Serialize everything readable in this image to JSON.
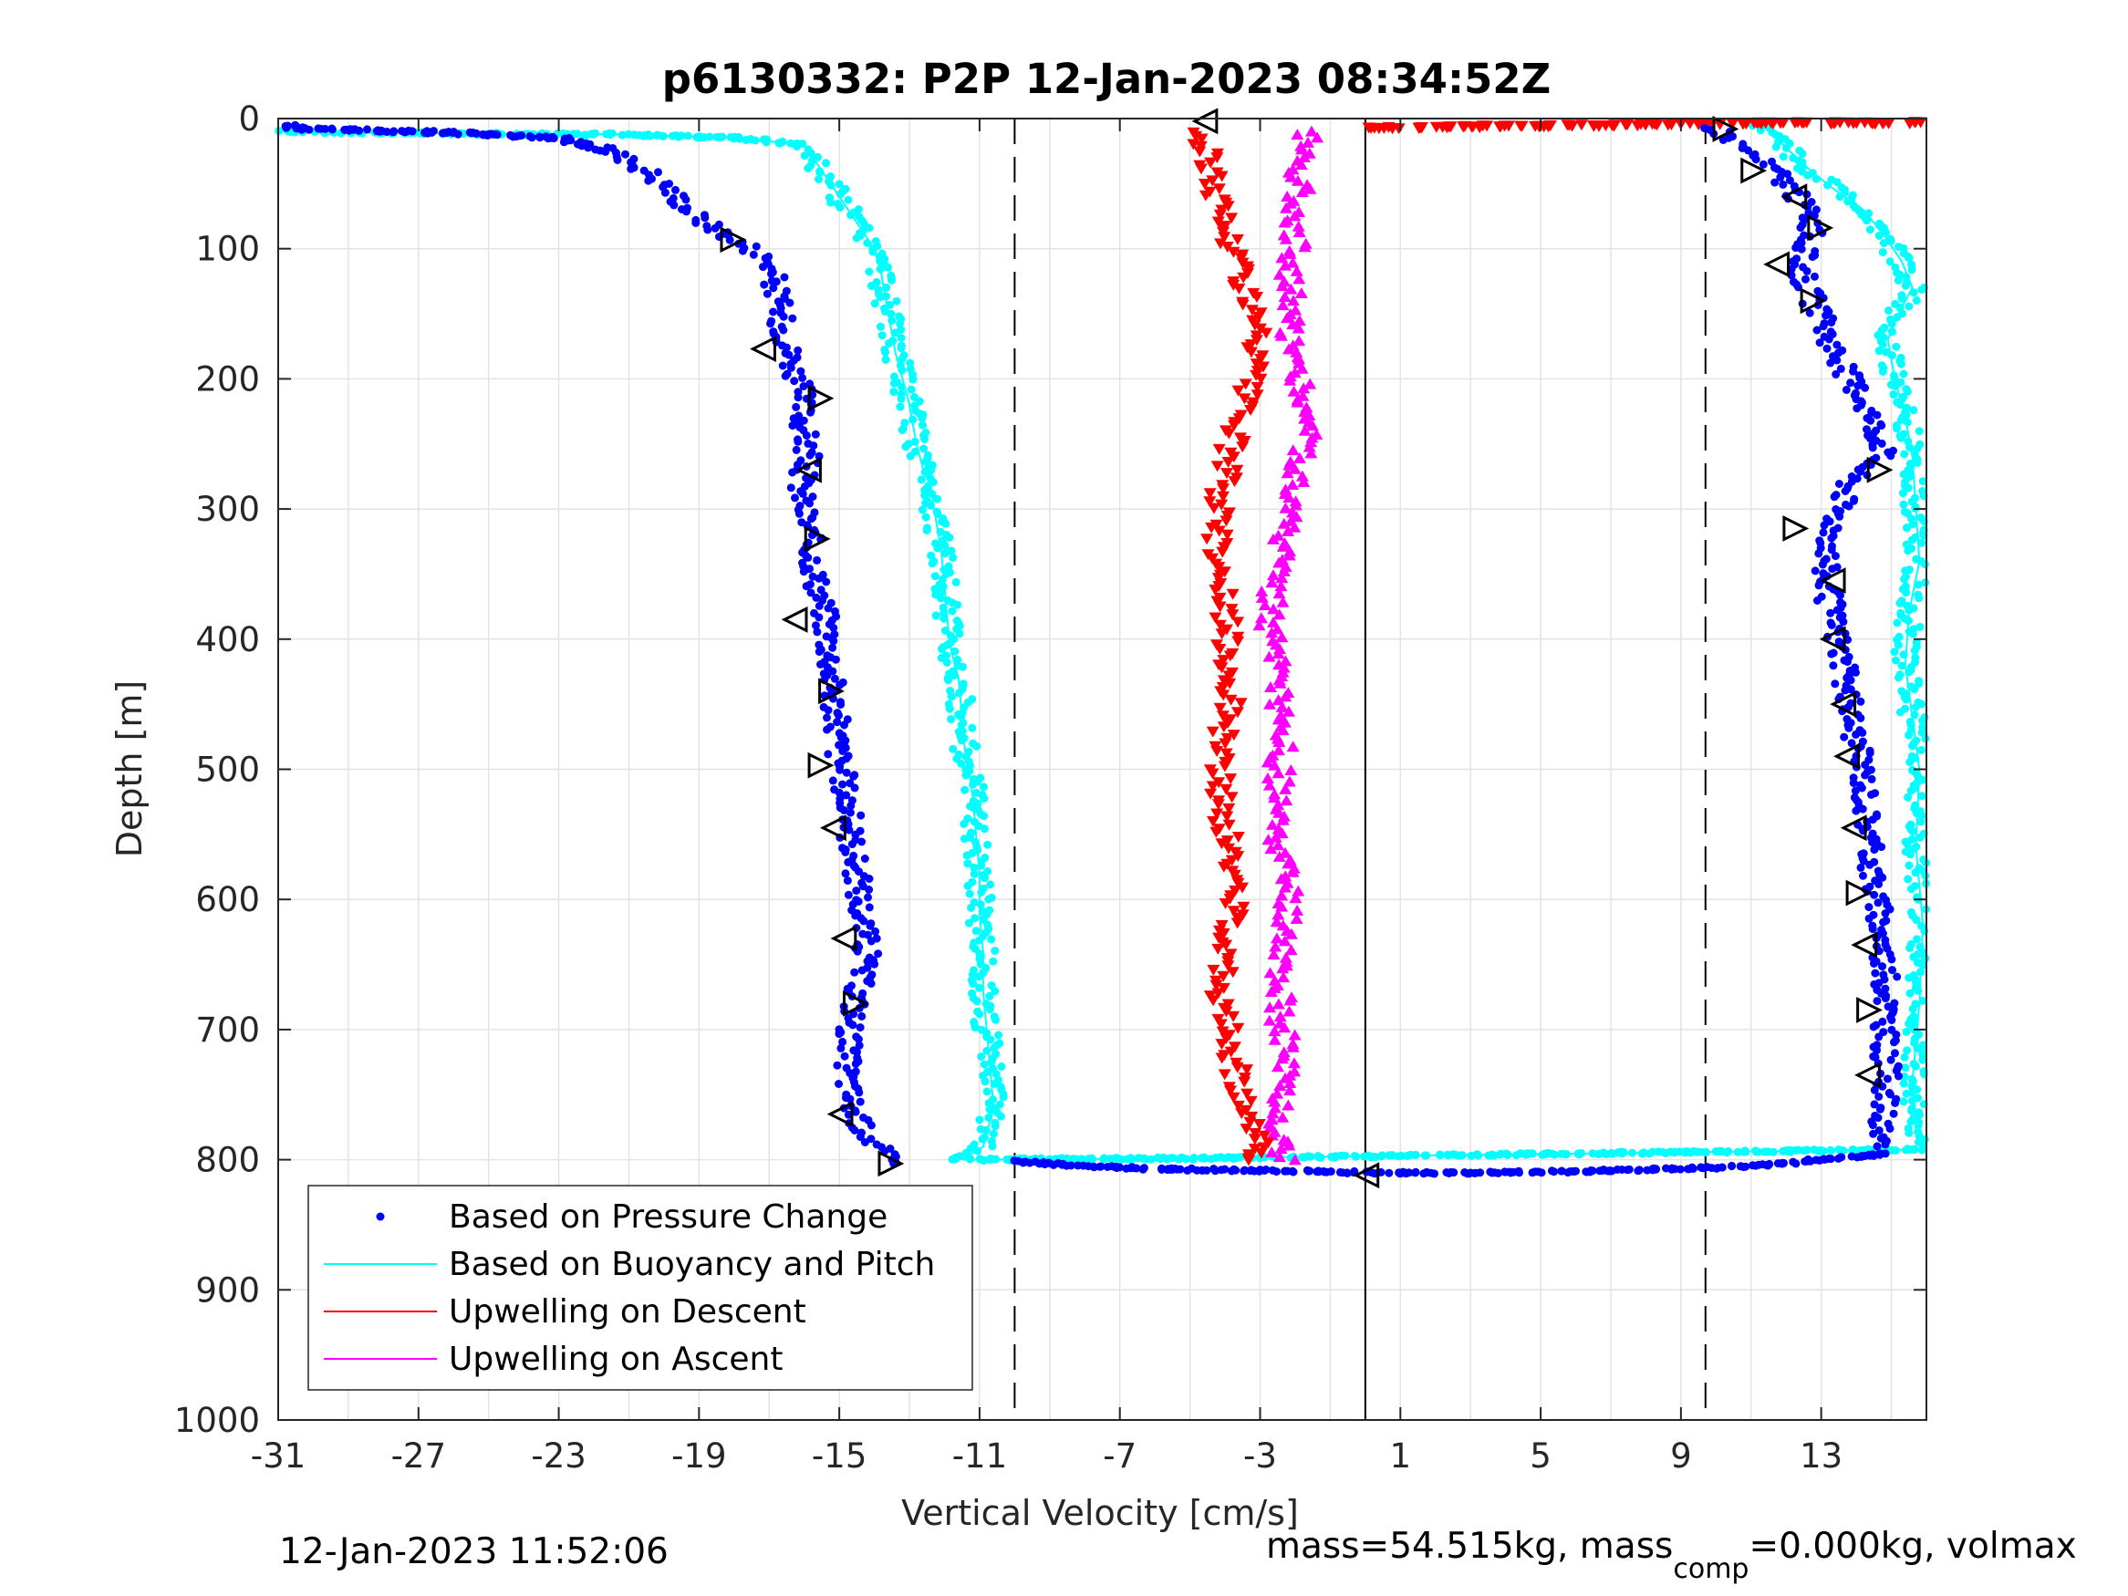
{
  "chart_data": {
    "type": "scatter",
    "title": "p6130332: P2P 12-Jan-2023 08:34:52Z",
    "xlabel": "Vertical Velocity [cm/s]",
    "ylabel": "Depth [m]",
    "xlim": [
      -31,
      16
    ],
    "ylim": [
      0,
      1000
    ],
    "y_reversed": true,
    "grid": true,
    "legend_location": "bottom-left",
    "x_ticks": [
      -31,
      -27,
      -23,
      -19,
      -15,
      -11,
      -7,
      -3,
      1,
      5,
      9,
      13
    ],
    "y_ticks": [
      0,
      100,
      200,
      300,
      400,
      500,
      600,
      700,
      800,
      900,
      1000
    ],
    "reference_lines": [
      {
        "x": -10,
        "style": "dashed"
      },
      {
        "x": 9.7,
        "style": "dashed"
      },
      {
        "x": 0,
        "style": "solid"
      }
    ],
    "series": [
      {
        "name": "Based on Pressure Change",
        "color": "#0000ff",
        "marker": "dot",
        "profiles": [
          {
            "x": [
              -31,
              -30,
              -27,
              -25,
              -23,
              -21.5,
              -20.5,
              -19.8,
              -19.3,
              -18.8,
              -18.2,
              -17.5,
              -17,
              -16.8,
              -16.7,
              -16.5,
              -16.3,
              -16.1,
              -16,
              -15.9,
              -16.1,
              -16,
              -15.8,
              -15.6,
              -15.4,
              -15.3,
              -15.2,
              -15.1,
              -15,
              -14.8,
              -14.6,
              -14.4,
              -14.2,
              -14.4,
              -14.6,
              -14.8,
              -14.7,
              -14.5,
              -14.2,
              -13.9,
              -13.6,
              -13.4
            ],
            "y": [
              5,
              8,
              10,
              12,
              15,
              25,
              40,
              55,
              70,
              80,
              90,
              100,
              110,
              130,
              150,
              170,
              190,
              210,
              240,
              260,
              280,
              300,
              330,
              360,
              380,
              400,
              430,
              460,
              490,
              520,
              560,
              600,
              640,
              660,
              690,
              720,
              750,
              770,
              780,
              790,
              800,
              803
            ]
          },
          {
            "x": [
              10,
              10.4,
              10.9,
              11.4,
              11.9,
              12.3,
              12.6,
              12.8,
              12.6,
              12.4,
              12.6,
              13.1,
              13.6,
              14.2,
              14.6,
              14.8,
              14.5,
              13.9,
              13.4,
              13.1,
              13.3,
              13.5,
              13.6,
              13.8,
              14,
              14.2,
              14.3,
              14.4,
              14.5,
              14.7,
              14.8,
              14.9,
              14.8,
              14.9,
              14.8,
              14.6,
              14.5
            ],
            "y": [
              8,
              15,
              25,
              35,
              45,
              60,
              70,
              80,
              95,
              110,
              130,
              160,
              190,
              215,
              240,
              255,
              265,
              275,
              310,
              350,
              380,
              400,
              420,
              450,
              480,
              500,
              530,
              560,
              590,
              620,
              650,
              680,
              710,
              740,
              760,
              780,
              790
            ]
          },
          {
            "x": [
              -10,
              -8,
              -6,
              -4,
              -1,
              0,
              3,
              6,
              9,
              11,
              13,
              15
            ],
            "y": [
              801,
              805,
              807,
              808,
              809,
              810,
              810,
              809,
              807,
              805,
              800,
              795
            ]
          }
        ]
      },
      {
        "name": "Based on Buoyancy and Pitch",
        "color": "#00ffff",
        "marker": "dot-line",
        "profiles": [
          {
            "x": [
              -31,
              -24,
              -21.5,
              -18,
              -16,
              -15.5,
              -15,
              -14.5,
              -14,
              -13.8,
              -13.6,
              -13.4,
              -13.2,
              -13,
              -12.8,
              -12.6,
              -12.4,
              -12.3,
              -12.1,
              -12,
              -11.9,
              -11.8,
              -11.6,
              -11.5,
              -11.4,
              -11.3,
              -11.2,
              -11.1,
              -11,
              -11,
              -10.9,
              -10.9,
              -10.8,
              -10.7,
              -10.6,
              -10.9,
              -11.5
            ],
            "y": [
              10,
              12,
              12,
              15,
              20,
              40,
              60,
              80,
              100,
              120,
              150,
              180,
              200,
              220,
              250,
              270,
              280,
              300,
              330,
              360,
              390,
              410,
              430,
              460,
              490,
              500,
              520,
              550,
              580,
              610,
              640,
              670,
              700,
              730,
              760,
              790,
              800
            ]
          },
          {
            "x": [
              -11.5,
              -5,
              1,
              7,
              13,
              16
            ],
            "y": [
              800,
              799,
              797,
              795,
              793,
              792
            ]
          },
          {
            "x": [
              11.2,
              11.6,
              12.1,
              12.7,
              13.4,
              14.2,
              14.8,
              15.3,
              15.6,
              15.2,
              14.9,
              15.1,
              15.4,
              15.6,
              15.7,
              15.8,
              15.5,
              15.4,
              15.6,
              15.8,
              15.7,
              15.9,
              15.8,
              15.6,
              15.8
            ],
            "y": [
              3,
              12,
              25,
              40,
              55,
              70,
              90,
              110,
              130,
              150,
              170,
              200,
              230,
              260,
              300,
              340,
              380,
              420,
              460,
              500,
              560,
              620,
              680,
              740,
              790
            ]
          }
        ]
      },
      {
        "name": "Upwelling on Descent",
        "color": "#ff0000",
        "marker": "triangle-down",
        "profiles": [
          {
            "x": [
              -4.8,
              -4.5,
              -4.3,
              -4.1,
              -3.9,
              -3.6,
              -3.3,
              -3.1,
              -3.3,
              -3.6,
              -3.9,
              -4.1,
              -4.2,
              -4.1,
              -4,
              -3.9,
              -3.8,
              -4,
              -4.2,
              -4.1,
              -3.9,
              -3.7,
              -3.8,
              -4,
              -4.1,
              -3.9,
              -3.6,
              -3.3,
              -3,
              -3.6
            ],
            "y": [
              10,
              30,
              50,
              70,
              90,
              110,
              140,
              170,
              200,
              230,
              260,
              290,
              320,
              350,
              380,
              410,
              440,
              470,
              500,
              530,
              560,
              590,
              620,
              650,
              680,
              710,
              740,
              770,
              790,
              800
            ]
          },
          {
            "x": [
              0,
              3,
              6,
              9,
              12,
              16
            ],
            "y": [
              7,
              6,
              5,
              4,
              3,
              3
            ]
          }
        ]
      },
      {
        "name": "Upwelling on Ascent",
        "color": "#ff00ff",
        "marker": "triangle-up",
        "profiles": [
          {
            "x": [
              -1.6,
              -1.8,
              -1.9,
              -2,
              -2.1,
              -2.2,
              -2,
              -1.8,
              -1.6,
              -1.9,
              -2.2,
              -2.4,
              -2.6,
              -2.7,
              -2.6,
              -2.5,
              -2.4,
              -2.5,
              -2.6,
              -2.4,
              -2.2,
              -2.3,
              -2.5,
              -2.4,
              -2.3,
              -2.4,
              -2.5,
              -2.4,
              -2.3
            ],
            "y": [
              10,
              30,
              60,
              90,
              120,
              150,
              180,
              210,
              240,
              270,
              300,
              330,
              360,
              390,
              420,
              450,
              480,
              510,
              540,
              570,
              600,
              630,
              660,
              690,
              720,
              750,
              770,
              790,
              800
            ]
          }
        ]
      }
    ],
    "annotations": [
      {
        "kind": "triangle-right-open",
        "points": [
          [
            -18.1,
            93
          ],
          [
            -15.6,
            215
          ],
          [
            -15.7,
            323
          ],
          [
            -15.3,
            440
          ],
          [
            -15.6,
            497
          ],
          [
            -14.6,
            680
          ],
          [
            -13.6,
            803
          ],
          [
            12.9,
            84
          ],
          [
            12.7,
            140
          ],
          [
            11,
            40
          ],
          [
            10.2,
            8
          ],
          [
            12.2,
            315
          ],
          [
            14.3,
            685
          ],
          [
            14,
            595
          ],
          [
            14.6,
            270
          ]
        ]
      },
      {
        "kind": "triangle-left-open",
        "points": [
          [
            -4.5,
            2
          ],
          [
            -17.1,
            177
          ],
          [
            -15.8,
            270
          ],
          [
            -16.2,
            385
          ],
          [
            -15.1,
            545
          ],
          [
            -14.8,
            630
          ],
          [
            -14.9,
            765
          ],
          [
            12.3,
            60
          ],
          [
            11.8,
            112
          ],
          [
            13.4,
            355
          ],
          [
            13.4,
            400
          ],
          [
            13.7,
            450
          ],
          [
            13.8,
            490
          ],
          [
            14,
            545
          ],
          [
            14.3,
            635
          ],
          [
            14.4,
            735
          ],
          [
            0.1,
            812
          ]
        ]
      }
    ],
    "legend": [
      {
        "label": "Based on Pressure Change",
        "color": "#0000ff",
        "style": "dot"
      },
      {
        "label": "Based on Buoyancy and Pitch",
        "color": "#00ffff",
        "style": "line"
      },
      {
        "label": "Upwelling on Descent",
        "color": "#ff0000",
        "style": "line"
      },
      {
        "label": "Upwelling on Ascent",
        "color": "#ff00ff",
        "style": "line"
      }
    ]
  },
  "footer": {
    "timestamp": "12-Jan-2023 11:52:06",
    "mass_text": "mass=54.515kg, mass",
    "mass_sub": "comp",
    "mass_tail": "=0.000kg, volmax"
  }
}
